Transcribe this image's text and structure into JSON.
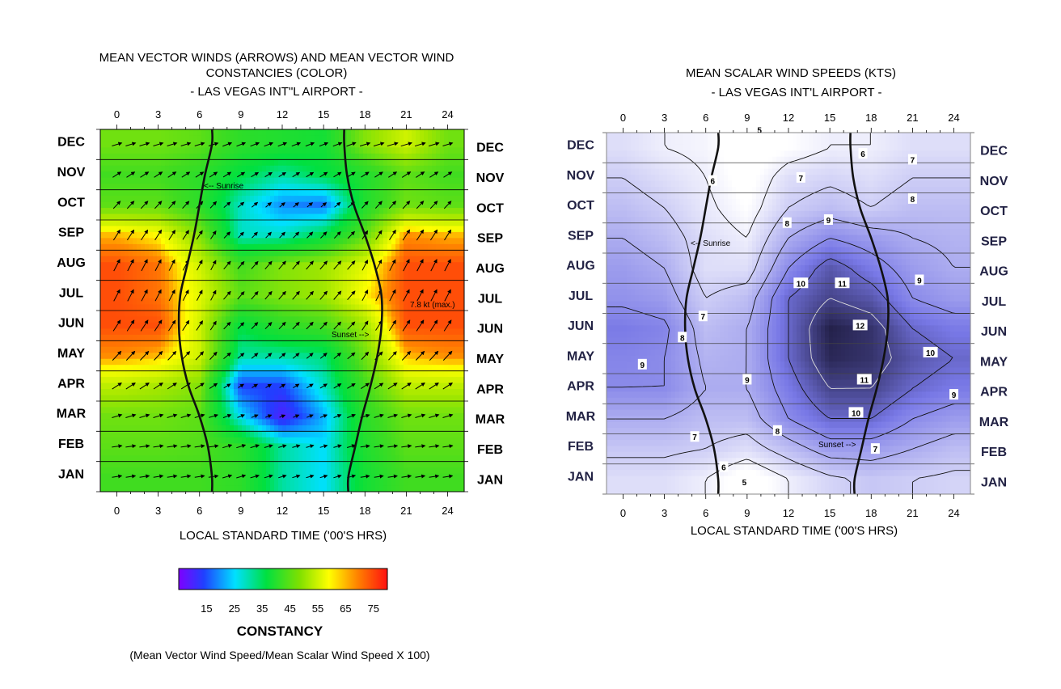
{
  "chart_data": [
    {
      "type": "heatmap",
      "title_lines": [
        "MEAN VECTOR WINDS (ARROWS) AND MEAN VECTOR WIND",
        "CONSTANCIES (COLOR)",
        "- LAS VEGAS INT\"L AIRPORT -"
      ],
      "xlabel": "LOCAL STANDARD TIME ('00'S HRS)",
      "x_ticks": [
        "0",
        "3",
        "6",
        "9",
        "12",
        "15",
        "18",
        "21",
        "24"
      ],
      "xlim": [
        -1.2,
        25.2
      ],
      "months": [
        "JAN",
        "FEB",
        "MAR",
        "APR",
        "MAY",
        "JUN",
        "JUL",
        "AUG",
        "SEP",
        "OCT",
        "NOV",
        "DEC"
      ],
      "hours": [
        0,
        3,
        6,
        9,
        12,
        15,
        18,
        21,
        24
      ],
      "constancy": [
        [
          45,
          45,
          45,
          42,
          30,
          25,
          38,
          45,
          45
        ],
        [
          48,
          48,
          47,
          42,
          30,
          25,
          40,
          48,
          48
        ],
        [
          50,
          50,
          48,
          25,
          10,
          22,
          42,
          50,
          50
        ],
        [
          58,
          56,
          52,
          15,
          15,
          28,
          45,
          58,
          58
        ],
        [
          70,
          68,
          60,
          30,
          30,
          32,
          50,
          68,
          70
        ],
        [
          75,
          75,
          60,
          35,
          42,
          45,
          55,
          75,
          75
        ],
        [
          75,
          72,
          62,
          48,
          52,
          55,
          65,
          75,
          75
        ],
        [
          75,
          72,
          60,
          45,
          52,
          55,
          62,
          75,
          75
        ],
        [
          68,
          65,
          52,
          28,
          28,
          35,
          48,
          70,
          68
        ],
        [
          48,
          48,
          42,
          28,
          20,
          18,
          40,
          50,
          48
        ],
        [
          45,
          45,
          42,
          35,
          30,
          35,
          40,
          48,
          45
        ],
        [
          50,
          50,
          48,
          42,
          40,
          38,
          52,
          60,
          50
        ]
      ],
      "sunrise_label": "<-- Sunrise",
      "sunset_label": "Sunset -->",
      "max_label": "7.8 kt (max.)",
      "colorbar": {
        "ticks": [
          "15",
          "25",
          "35",
          "45",
          "55",
          "65",
          "75"
        ],
        "range": [
          5,
          80
        ],
        "title": "CONSTANCY",
        "subtitle": "(Mean Vector Wind Speed/Mean Scalar Wind Speed X 100)"
      }
    },
    {
      "type": "heatmap",
      "title_lines": [
        "MEAN SCALAR WIND SPEEDS (KTS)",
        "- LAS VEGAS INT'L AIRPORT -"
      ],
      "xlabel": "LOCAL STANDARD TIME ('00'S HRS)",
      "x_ticks": [
        "0",
        "3",
        "6",
        "9",
        "12",
        "15",
        "18",
        "21",
        "24"
      ],
      "xlim": [
        -1.2,
        25.2
      ],
      "months": [
        "JAN",
        "FEB",
        "MAR",
        "APR",
        "MAY",
        "JUN",
        "JUL",
        "AUG",
        "SEP",
        "OCT",
        "NOV",
        "DEC"
      ],
      "hours": [
        0,
        3,
        6,
        9,
        12,
        15,
        18,
        21,
        24
      ],
      "speed": [
        [
          6.5,
          6.5,
          6.0,
          5.0,
          6.0,
          6.8,
          7.2,
          7.0,
          6.8
        ],
        [
          7.2,
          7.2,
          7.0,
          6.5,
          7.5,
          8.5,
          8.5,
          8.0,
          7.5
        ],
        [
          8.0,
          8.0,
          7.5,
          7.5,
          9.0,
          10.0,
          10.0,
          9.0,
          8.5
        ],
        [
          9.0,
          9.0,
          8.0,
          8.0,
          9.5,
          11.0,
          11.0,
          10.0,
          9.5
        ],
        [
          9.2,
          9.0,
          7.8,
          8.0,
          10.0,
          11.8,
          11.5,
          10.5,
          10.0
        ],
        [
          9.5,
          9.2,
          7.5,
          8.0,
          10.0,
          12.0,
          11.5,
          10.0,
          9.5
        ],
        [
          8.8,
          8.5,
          7.0,
          7.5,
          10.0,
          11.0,
          10.5,
          9.0,
          8.5
        ],
        [
          8.5,
          8.0,
          6.5,
          6.5,
          9.0,
          10.5,
          9.5,
          8.5,
          8.0
        ],
        [
          8.0,
          7.5,
          6.5,
          6.0,
          8.0,
          9.0,
          8.5,
          8.0,
          7.8
        ],
        [
          7.5,
          7.0,
          6.2,
          5.5,
          7.0,
          7.5,
          7.0,
          7.5,
          7.5
        ],
        [
          7.0,
          6.5,
          6.0,
          5.2,
          6.5,
          6.8,
          6.5,
          7.0,
          7.0
        ],
        [
          6.5,
          6.0,
          5.8,
          5.0,
          5.5,
          6.0,
          6.0,
          6.5,
          6.5
        ]
      ],
      "contour_labels": [
        {
          "text": "5",
          "hour": 9.9,
          "month": 11.6
        },
        {
          "text": "6",
          "hour": 17.4,
          "month": 10.8
        },
        {
          "text": "6",
          "hour": 6.5,
          "month": 9.9
        },
        {
          "text": "7",
          "hour": 21.0,
          "month": 10.6
        },
        {
          "text": "7",
          "hour": 12.9,
          "month": 10.0
        },
        {
          "text": "8",
          "hour": 21.0,
          "month": 9.3
        },
        {
          "text": "8",
          "hour": 11.9,
          "month": 8.5
        },
        {
          "text": "9",
          "hour": 14.9,
          "month": 8.6
        },
        {
          "text": "10",
          "hour": 12.9,
          "month": 6.5
        },
        {
          "text": "11",
          "hour": 15.9,
          "month": 6.5
        },
        {
          "text": "9",
          "hour": 21.5,
          "month": 6.6
        },
        {
          "text": "7",
          "hour": 5.8,
          "month": 5.4
        },
        {
          "text": "12",
          "hour": 17.2,
          "month": 5.1
        },
        {
          "text": "8",
          "hour": 4.3,
          "month": 4.7
        },
        {
          "text": "10",
          "hour": 22.3,
          "month": 4.2
        },
        {
          "text": "9",
          "hour": 1.4,
          "month": 3.8
        },
        {
          "text": "9",
          "hour": 9.0,
          "month": 3.3
        },
        {
          "text": "11",
          "hour": 17.5,
          "month": 3.3
        },
        {
          "text": "9",
          "hour": 24.0,
          "month": 2.8
        },
        {
          "text": "10",
          "hour": 16.9,
          "month": 2.2
        },
        {
          "text": "8",
          "hour": 11.2,
          "month": 1.6
        },
        {
          "text": "7",
          "hour": 5.2,
          "month": 1.4
        },
        {
          "text": "7",
          "hour": 18.3,
          "month": 1.0
        },
        {
          "text": "6",
          "hour": 7.3,
          "month": 0.4
        },
        {
          "text": "5",
          "hour": 8.8,
          "month": -0.1
        }
      ],
      "sunrise_label": "<-- Sunrise",
      "sunset_label": "Sunset -->"
    }
  ],
  "sunrise_hours": [
    6.9,
    6.6,
    6.0,
    5.2,
    4.7,
    4.5,
    4.6,
    5.1,
    5.6,
    6.0,
    6.4,
    6.9
  ],
  "sunset_hours": [
    16.8,
    17.3,
    17.8,
    18.4,
    18.9,
    19.2,
    19.2,
    18.7,
    18.0,
    17.2,
    16.7,
    16.5
  ]
}
